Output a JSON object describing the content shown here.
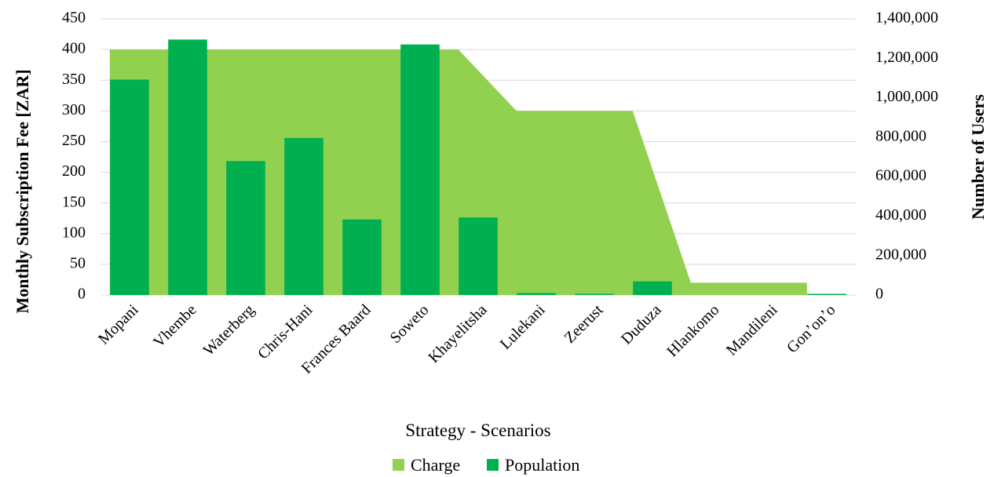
{
  "chart_data": {
    "type": "bar",
    "xlabel": "Strategy - Scenarios",
    "ylabel_left": "Monthly Subscription Fee [ZAR]",
    "ylabel_right": "Number of Users",
    "categories": [
      "Mopani",
      "Vhembe",
      "Waterberg",
      "Chris-Hani",
      "Frances Baard",
      "Soweto",
      "Khayelitsha",
      "Lulekani",
      "Zeerust",
      "Duduza",
      "Hlankomo",
      "Mandileni",
      "Gon’on’o"
    ],
    "y_left": {
      "min": 0,
      "max": 450,
      "step": 50,
      "tick_labels": [
        "0",
        "50",
        "100",
        "150",
        "200",
        "250",
        "300",
        "350",
        "400",
        "450"
      ]
    },
    "y_right": {
      "min": 0,
      "max": 1400000,
      "step": 200000,
      "tick_labels": [
        "0",
        "200,000",
        "400,000",
        "600,000",
        "800,000",
        "1,000,000",
        "1,200,000",
        "1,400,000"
      ]
    },
    "grid": true,
    "legend_position": "bottom",
    "series": [
      {
        "name": "Charge",
        "type": "area",
        "axis": "left",
        "color": "#92d050",
        "values": [
          400,
          400,
          400,
          400,
          400,
          400,
          400,
          300,
          300,
          300,
          20,
          20,
          20
        ]
      },
      {
        "name": "Population",
        "type": "bar",
        "axis": "right",
        "color": "#00b050",
        "values": [
          1092000,
          1295000,
          679000,
          796000,
          383000,
          1270000,
          393000,
          10000,
          5000,
          69000,
          0,
          0,
          3000
        ]
      }
    ]
  }
}
